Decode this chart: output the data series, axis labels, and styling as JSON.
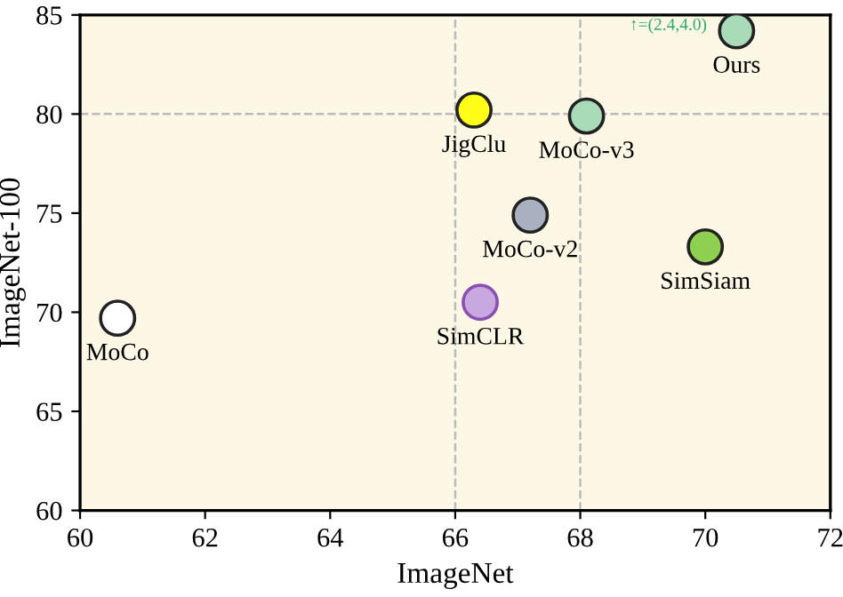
{
  "chart_data": {
    "type": "scatter",
    "xlabel": "ImageNet",
    "ylabel": "ImageNet-100",
    "xlim": [
      60,
      72
    ],
    "xticks": [
      60,
      62,
      64,
      66,
      68,
      70,
      72
    ],
    "ylim": [
      60,
      85
    ],
    "yticks": [
      60,
      65,
      70,
      75,
      80,
      85
    ],
    "grid": false,
    "legend": false,
    "marker": "circle",
    "ref_lines": [
      {
        "axis": "x",
        "value": 66,
        "color": "#bbbbbb",
        "line_style": "dashed"
      },
      {
        "axis": "x",
        "value": 68,
        "color": "#bbbbbb",
        "line_style": "dashed"
      },
      {
        "axis": "y",
        "value": 80,
        "color": "#bbbbbb",
        "line_style": "dashed"
      }
    ],
    "series": [
      {
        "name": "MoCo",
        "color": "#ffffff",
        "x": [
          60.6
        ],
        "values": [
          69.7
        ]
      },
      {
        "name": "SimCLR",
        "color": "#c9a8e0",
        "x": [
          66.4
        ],
        "values": [
          70.5
        ]
      },
      {
        "name": "MoCo-v2",
        "color": "#a9b0bf",
        "x": [
          67.2
        ],
        "values": [
          74.9
        ]
      },
      {
        "name": "SimSiam",
        "color": "#8ed150",
        "x": [
          70.0
        ],
        "values": [
          73.3
        ]
      },
      {
        "name": "JigClu",
        "color": "#ffff1a",
        "x": [
          66.3
        ],
        "values": [
          80.2
        ]
      },
      {
        "name": "MoCo-v3",
        "color": "#a8dcb8",
        "x": [
          68.1
        ],
        "values": [
          79.9
        ]
      },
      {
        "name": "Ours",
        "color": "#a8dcb8",
        "x": [
          70.5
        ],
        "values": [
          84.2
        ]
      }
    ],
    "annotations": [
      {
        "text": "↑=(2.4,4.0)",
        "x": 70.5,
        "y": 84.2
      }
    ]
  }
}
